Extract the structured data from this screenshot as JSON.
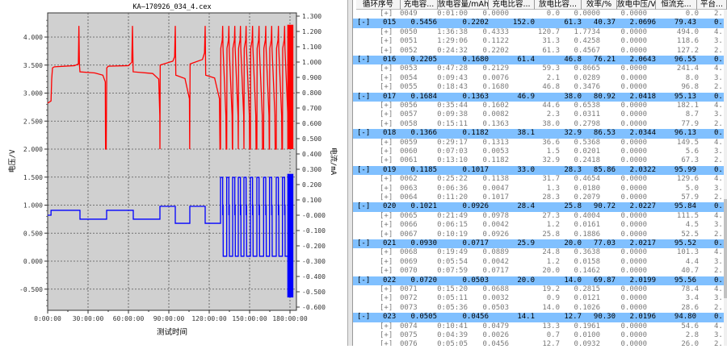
{
  "chart_data": {
    "type": "line",
    "title": "KA—170926_034_4.cex",
    "xlabel": "测试时间",
    "ylabel_left": "电压/V",
    "ylabel_right": "电流/mA",
    "xlim_hours": [
      0,
      184.8
    ],
    "ylim_left": [
      -0.88,
      4.43
    ],
    "ylim_right": [
      -0.64,
      1.32
    ],
    "x_ticks": [
      "0:00:00",
      "30:00:00",
      "60:00:00",
      "90:00:00",
      "120:00:00",
      "150:00:00",
      "180:00:00"
    ],
    "x_tick_hours": [
      0,
      30,
      60,
      90,
      120,
      150,
      180
    ],
    "y_left_ticks": [
      "4.000",
      "3.500",
      "3.000",
      "2.500",
      "2.000",
      "1.500",
      "1.000",
      "0.500",
      "0.000",
      "-0.500"
    ],
    "y_left_values": [
      4,
      3.5,
      3,
      2.5,
      2,
      1.5,
      1,
      0.5,
      0,
      -0.5
    ],
    "y_right_ticks": [
      "1.300",
      "1.200",
      "1.100",
      "1.000",
      "0.900",
      "0.800",
      "0.700",
      "0.600",
      "0.500",
      "0.400",
      "0.300",
      "0.200",
      "0.100",
      "-0.000",
      "-0.100",
      "-0.200",
      "-0.300",
      "-0.400",
      "-0.500",
      "-0.600"
    ],
    "y_right_values": [
      1.3,
      1.2,
      1.1,
      1.0,
      0.9,
      0.8,
      0.7,
      0.6,
      0.5,
      0.4,
      0.3,
      0.2,
      0.1,
      0,
      -0.1,
      -0.2,
      -0.3,
      -0.4,
      -0.5,
      -0.6
    ],
    "grid": true,
    "series": [
      {
        "name": "voltage",
        "axis": "left",
        "color": "#ff0000",
        "points": [
          [
            0,
            2.82
          ],
          [
            2.5,
            2.86
          ],
          [
            3,
            3.25
          ],
          [
            3.6,
            3.45
          ],
          [
            5,
            3.47
          ],
          [
            20,
            3.49
          ],
          [
            22.8,
            3.52
          ],
          [
            23.2,
            4.2
          ],
          [
            23.6,
            3.5
          ],
          [
            24,
            3.38
          ],
          [
            35,
            3.36
          ],
          [
            41,
            3.32
          ],
          [
            42.8,
            3.2
          ],
          [
            43,
            2.0
          ],
          [
            43.5,
            2.0
          ],
          [
            43.9,
            3.45
          ],
          [
            45,
            3.48
          ],
          [
            60,
            3.49
          ],
          [
            62.5,
            3.55
          ],
          [
            63,
            4.2
          ],
          [
            63.5,
            3.38
          ],
          [
            78,
            3.35
          ],
          [
            82.5,
            3.25
          ],
          [
            83.3,
            2.6
          ],
          [
            83.4,
            2.0
          ],
          [
            83.6,
            3.5
          ],
          [
            93,
            3.57
          ],
          [
            94.3,
            3.65
          ],
          [
            94.8,
            4.2
          ],
          [
            95.2,
            3.32
          ],
          [
            102,
            3.26
          ],
          [
            105.3,
            2.9
          ],
          [
            105.5,
            2.0
          ],
          [
            105.8,
            3.52
          ],
          [
            115,
            3.6
          ],
          [
            116.5,
            3.72
          ],
          [
            117,
            4.2
          ],
          [
            117.4,
            3.32
          ],
          [
            124,
            3.27
          ],
          [
            127.6,
            2.9
          ],
          [
            128,
            2.0
          ]
        ],
        "rapid_cycle_spikes_h": [
          130,
          134.6,
          139,
          143.2,
          147.4,
          152.2,
          157,
          162,
          166.4,
          171.4,
          176
        ],
        "final_block_h": [
          178,
          182.5
        ],
        "final_block_range": [
          2.0,
          4.22
        ]
      },
      {
        "name": "current",
        "axis": "right",
        "color": "#0000ff",
        "steps": [
          [
            0,
            0.0
          ],
          [
            2.5,
            0.032
          ],
          [
            24,
            -0.026
          ],
          [
            43.8,
            0.032
          ],
          [
            63.6,
            -0.026
          ],
          [
            83.4,
            0.058
          ],
          [
            94.8,
            -0.053
          ],
          [
            105.6,
            0.058
          ],
          [
            117,
            -0.053
          ]
        ],
        "step_end_h": 128,
        "rapid_high": 0.247,
        "rapid_low": -0.268,
        "final_block_h": [
          178,
          182.5
        ],
        "final_block_range": [
          -0.537,
          0.27
        ]
      }
    ]
  },
  "table": {
    "columns": [
      "循环序号",
      "充电容...",
      "放电容量/mAh",
      "充电比容...",
      "放电比容...",
      "效率/%",
      "放电中压/V",
      "恒流充...",
      "平台..."
    ],
    "rows": [
      {
        "type": "child",
        "toggle": "[+]",
        "id": "0049",
        "cells": [
          "0:01:00",
          "0.0000",
          "0.0",
          "0.0000",
          "0.0000",
          "0.0",
          "2."
        ]
      },
      {
        "type": "group",
        "toggle": "[-]",
        "id": "015",
        "cells": [
          "0.5456",
          "0.2202",
          "152.0",
          "61.3",
          "40.37",
          "2.0696",
          "79.43",
          "0."
        ]
      },
      {
        "type": "child",
        "toggle": "[+]",
        "id": "0050",
        "cells": [
          "1:36:38",
          "0.4333",
          "120.7",
          "1.7734",
          "0.0000",
          "494.0",
          "4."
        ]
      },
      {
        "type": "child",
        "toggle": "[+]",
        "id": "0051",
        "cells": [
          "1:29:06",
          "0.1122",
          "31.3",
          "0.4258",
          "0.0000",
          "118.6",
          "3."
        ]
      },
      {
        "type": "child",
        "toggle": "[+]",
        "id": "0052",
        "cells": [
          "0:24:32",
          "0.2202",
          "61.3",
          "0.4567",
          "0.0000",
          "127.2",
          "2."
        ]
      },
      {
        "type": "group",
        "toggle": "[-]",
        "id": "016",
        "cells": [
          "0.2205",
          "0.1680",
          "61.4",
          "46.8",
          "76.21",
          "2.0643",
          "96.55",
          "0."
        ]
      },
      {
        "type": "child",
        "toggle": "[+]",
        "id": "0053",
        "cells": [
          "0:47:28",
          "0.2129",
          "59.3",
          "0.8665",
          "0.0000",
          "241.4",
          "4."
        ]
      },
      {
        "type": "child",
        "toggle": "[+]",
        "id": "0054",
        "cells": [
          "0:09:43",
          "0.0076",
          "2.1",
          "0.0289",
          "0.0000",
          "8.0",
          "3."
        ]
      },
      {
        "type": "child",
        "toggle": "[+]",
        "id": "0055",
        "cells": [
          "0:18:43",
          "0.1680",
          "46.8",
          "0.3476",
          "0.0000",
          "96.8",
          "2."
        ]
      },
      {
        "type": "group",
        "toggle": "[-]",
        "id": "017",
        "cells": [
          "0.1684",
          "0.1363",
          "46.9",
          "38.0",
          "80.92",
          "2.0418",
          "95.13",
          "0."
        ]
      },
      {
        "type": "child",
        "toggle": "[+]",
        "id": "0056",
        "cells": [
          "0:35:44",
          "0.1602",
          "44.6",
          "0.6538",
          "0.0000",
          "182.1",
          "4."
        ]
      },
      {
        "type": "child",
        "toggle": "[+]",
        "id": "0057",
        "cells": [
          "0:09:38",
          "0.0082",
          "2.3",
          "0.0311",
          "0.0000",
          "8.7",
          "3."
        ]
      },
      {
        "type": "child",
        "toggle": "[+]",
        "id": "0058",
        "cells": [
          "0:15:11",
          "0.1363",
          "38.0",
          "0.2798",
          "0.0000",
          "77.9",
          "2."
        ]
      },
      {
        "type": "group",
        "toggle": "[-]",
        "id": "018",
        "cells": [
          "0.1366",
          "0.1182",
          "38.1",
          "32.9",
          "86.53",
          "2.0344",
          "96.13",
          "0."
        ]
      },
      {
        "type": "child",
        "toggle": "[+]",
        "id": "0059",
        "cells": [
          "0:29:17",
          "0.1313",
          "36.6",
          "0.5368",
          "0.0000",
          "149.5",
          "4."
        ]
      },
      {
        "type": "child",
        "toggle": "[+]",
        "id": "0060",
        "cells": [
          "0:07:03",
          "0.0053",
          "1.5",
          "0.0201",
          "0.0000",
          "5.6",
          "3."
        ]
      },
      {
        "type": "child",
        "toggle": "[+]",
        "id": "0061",
        "cells": [
          "0:13:10",
          "0.1182",
          "32.9",
          "0.2418",
          "0.0000",
          "67.3",
          "2."
        ]
      },
      {
        "type": "group",
        "toggle": "[-]",
        "id": "019",
        "cells": [
          "0.1185",
          "0.1017",
          "33.0",
          "28.3",
          "85.86",
          "2.0322",
          "95.99",
          "0."
        ]
      },
      {
        "type": "child",
        "toggle": "[+]",
        "id": "0062",
        "cells": [
          "0:25:22",
          "0.1138",
          "31.7",
          "0.4654",
          "0.0000",
          "129.6",
          "4."
        ]
      },
      {
        "type": "child",
        "toggle": "[+]",
        "id": "0063",
        "cells": [
          "0:06:36",
          "0.0047",
          "1.3",
          "0.0180",
          "0.0000",
          "5.0",
          "3."
        ]
      },
      {
        "type": "child",
        "toggle": "[+]",
        "id": "0064",
        "cells": [
          "0:11:20",
          "0.1017",
          "28.3",
          "0.2079",
          "0.0000",
          "57.9",
          "2."
        ]
      },
      {
        "type": "group",
        "toggle": "[-]",
        "id": "020",
        "cells": [
          "0.1021",
          "0.0926",
          "28.4",
          "25.8",
          "90.72",
          "2.0227",
          "95.84",
          "0."
        ]
      },
      {
        "type": "child",
        "toggle": "[+]",
        "id": "0065",
        "cells": [
          "0:21:49",
          "0.0978",
          "27.3",
          "0.4004",
          "0.0000",
          "111.5",
          "4."
        ]
      },
      {
        "type": "child",
        "toggle": "[+]",
        "id": "0066",
        "cells": [
          "0:06:15",
          "0.0042",
          "1.2",
          "0.0161",
          "0.0000",
          "4.5",
          "3."
        ]
      },
      {
        "type": "child",
        "toggle": "[+]",
        "id": "0067",
        "cells": [
          "0:10:19",
          "0.0926",
          "25.8",
          "0.1886",
          "0.0000",
          "52.5",
          "2."
        ]
      },
      {
        "type": "group",
        "toggle": "[-]",
        "id": "021",
        "cells": [
          "0.0930",
          "0.0717",
          "25.9",
          "20.0",
          "77.03",
          "2.0217",
          "95.52",
          "0."
        ]
      },
      {
        "type": "child",
        "toggle": "[+]",
        "id": "0068",
        "cells": [
          "0:19:49",
          "0.0889",
          "24.8",
          "0.3638",
          "0.0000",
          "101.3",
          "4."
        ]
      },
      {
        "type": "child",
        "toggle": "[+]",
        "id": "0069",
        "cells": [
          "0:05:54",
          "0.0042",
          "1.2",
          "0.0158",
          "0.0000",
          "4.4",
          "3."
        ]
      },
      {
        "type": "child",
        "toggle": "[+]",
        "id": "0070",
        "cells": [
          "0:07:59",
          "0.0717",
          "20.0",
          "0.1462",
          "0.0000",
          "40.7",
          "2."
        ]
      },
      {
        "type": "group",
        "toggle": "[-]",
        "id": "022",
        "cells": [
          "0.0720",
          "0.0503",
          "20.0",
          "14.0",
          "69.87",
          "2.0199",
          "95.56",
          "0."
        ]
      },
      {
        "type": "child",
        "toggle": "[+]",
        "id": "0071",
        "cells": [
          "0:15:20",
          "0.0688",
          "19.2",
          "0.2815",
          "0.0000",
          "78.4",
          "4."
        ]
      },
      {
        "type": "child",
        "toggle": "[+]",
        "id": "0072",
        "cells": [
          "0:05:11",
          "0.0032",
          "0.9",
          "0.0121",
          "0.0000",
          "3.4",
          "3."
        ]
      },
      {
        "type": "child",
        "toggle": "[+]",
        "id": "0073",
        "cells": [
          "0:05:36",
          "0.0503",
          "14.0",
          "0.1026",
          "0.0000",
          "28.6",
          "2."
        ]
      },
      {
        "type": "group",
        "toggle": "[-]",
        "id": "023",
        "cells": [
          "0.0505",
          "0.0456",
          "14.1",
          "12.7",
          "90.30",
          "2.0196",
          "94.80",
          "0."
        ]
      },
      {
        "type": "child",
        "toggle": "[+]",
        "id": "0074",
        "cells": [
          "0:10:41",
          "0.0479",
          "13.3",
          "0.1961",
          "0.0000",
          "54.6",
          "4."
        ]
      },
      {
        "type": "child",
        "toggle": "[+]",
        "id": "0075",
        "cells": [
          "0:04:39",
          "0.0026",
          "0.7",
          "0.0100",
          "0.0000",
          "2.8",
          "3."
        ]
      },
      {
        "type": "child",
        "toggle": "[+]",
        "id": "0076",
        "cells": [
          "0:05:05",
          "0.0456",
          "12.7",
          "0.0932",
          "0.0000",
          "26.0",
          "2."
        ]
      }
    ]
  }
}
